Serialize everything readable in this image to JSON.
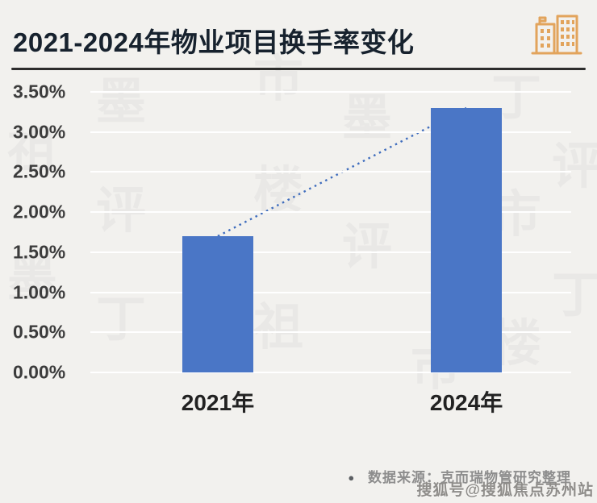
{
  "header": {
    "title": "2021-2024年物业项目换手率变化",
    "icon": "buildings-icon",
    "icon_color": "#e2a45c"
  },
  "chart_data": {
    "type": "bar",
    "title": "2021-2024年物业项目换手率变化",
    "categories": [
      "2021年",
      "2024年"
    ],
    "values": [
      1.7,
      3.3
    ],
    "value_format": "percent",
    "ylim": [
      0,
      3.5
    ],
    "ytick_step": 0.5,
    "yticks": [
      "3.50%",
      "3.00%",
      "2.50%",
      "2.00%",
      "1.50%",
      "1.00%",
      "0.50%",
      "0.00%"
    ],
    "grid": true,
    "legend": "none",
    "bar_color": "#4a76c6",
    "trendline": {
      "style": "dotted",
      "color": "#3e6cbd",
      "from_value": 1.7,
      "to_value": 3.3
    }
  },
  "footer": {
    "bullet": "●",
    "source": "数据来源：克而瑞物管研究整理"
  },
  "watermark": {
    "bottom_right": "搜狐号@搜狐焦点苏州站",
    "background_chars": [
      "墨",
      "评",
      "丁",
      "市",
      "楼",
      "祖"
    ]
  }
}
